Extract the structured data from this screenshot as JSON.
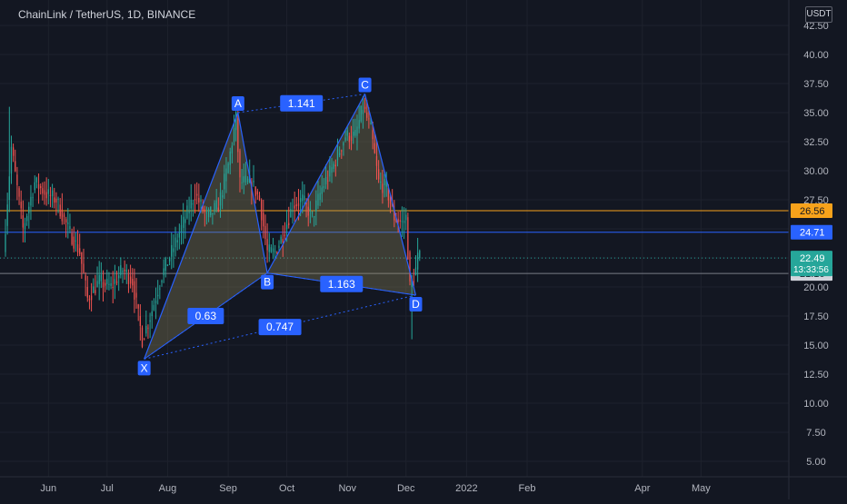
{
  "header": {
    "title": "ChainLink / TetherUS, 1D, BINANCE"
  },
  "currency": "USDT",
  "colors": {
    "background": "#131722",
    "grid": "#1e222d",
    "up": "#26a69a",
    "down": "#ef5350",
    "pattern_line": "#2962ff",
    "pattern_fill": "#8d8459",
    "badge": "#2962ff",
    "level_orange": "#f7a21b",
    "level_blue": "#2962ff",
    "axis_text": "#b2b5be"
  },
  "chart_data": {
    "type": "candlestick",
    "x_tick_labels": [
      {
        "label": "Jun",
        "date": "2021-06-01"
      },
      {
        "label": "Jul",
        "date": "2021-07-01"
      },
      {
        "label": "Aug",
        "date": "2021-08-01"
      },
      {
        "label": "Sep",
        "date": "2021-09-01"
      },
      {
        "label": "Oct",
        "date": "2021-10-01"
      },
      {
        "label": "Nov",
        "date": "2021-11-01"
      },
      {
        "label": "Dec",
        "date": "2021-12-01"
      },
      {
        "label": "2022",
        "date": "2022-01-01"
      },
      {
        "label": "Feb",
        "date": "2022-02-01"
      },
      {
        "label": "Apr",
        "date": "2022-04-01"
      },
      {
        "label": "May",
        "date": "2022-05-01"
      }
    ],
    "y_ticks": [
      "42.50",
      "40.00",
      "37.50",
      "35.00",
      "32.50",
      "30.00",
      "27.50",
      "25.00",
      "22.50",
      "20.00",
      "17.50",
      "15.00",
      "12.50",
      "10.00",
      "7.50",
      "5.00"
    ],
    "y_range": [
      3.9,
      43.5
    ],
    "x_range": [
      "2021-05-10",
      "2022-06-01"
    ],
    "price_path": [
      [
        "2021-05-10",
        23
      ],
      [
        "2021-05-14",
        32
      ],
      [
        "2021-05-20",
        25
      ],
      [
        "2021-05-26",
        29
      ],
      [
        "2021-06-01",
        28
      ],
      [
        "2021-06-06",
        27.5
      ],
      [
        "2021-06-12",
        25
      ],
      [
        "2021-06-18",
        23
      ],
      [
        "2021-06-22",
        19
      ],
      [
        "2021-06-28",
        20.5
      ],
      [
        "2021-07-04",
        20
      ],
      [
        "2021-07-10",
        21.5
      ],
      [
        "2021-07-15",
        20.5
      ],
      [
        "2021-07-20",
        15.5
      ],
      [
        "2021-07-25",
        18
      ],
      [
        "2021-07-30",
        21
      ],
      [
        "2021-08-04",
        23
      ],
      [
        "2021-08-10",
        25.5
      ],
      [
        "2021-08-16",
        28
      ],
      [
        "2021-08-22",
        26
      ],
      [
        "2021-08-28",
        27
      ],
      [
        "2021-09-02",
        30.5
      ],
      [
        "2021-09-06",
        34.5
      ],
      [
        "2021-09-08",
        29
      ],
      [
        "2021-09-14",
        29
      ],
      [
        "2021-09-18",
        27.5
      ],
      [
        "2021-09-22",
        23
      ],
      [
        "2021-09-26",
        23
      ],
      [
        "2021-09-30",
        24.5
      ],
      [
        "2021-10-05",
        27
      ],
      [
        "2021-10-10",
        27.5
      ],
      [
        "2021-10-15",
        26
      ],
      [
        "2021-10-20",
        28.5
      ],
      [
        "2021-10-26",
        30.5
      ],
      [
        "2021-11-01",
        33
      ],
      [
        "2021-11-06",
        33
      ],
      [
        "2021-11-10",
        35.5
      ],
      [
        "2021-11-14",
        33.5
      ],
      [
        "2021-11-18",
        29
      ],
      [
        "2021-11-22",
        28.5
      ],
      [
        "2021-11-26",
        26
      ],
      [
        "2021-11-30",
        25.5
      ],
      [
        "2021-12-02",
        26
      ],
      [
        "2021-12-04",
        20
      ],
      [
        "2021-12-07",
        21.5
      ],
      [
        "2021-12-08",
        22.49
      ]
    ],
    "extremes": [
      {
        "date": "2021-05-12",
        "value": 35.5
      },
      {
        "date": "2021-06-19",
        "value": 21.5
      },
      {
        "date": "2021-12-04",
        "value": 15.5
      }
    ],
    "harmonic_pattern": {
      "points": [
        {
          "label": "X",
          "date": "2021-07-20",
          "value": 13.8
        },
        {
          "label": "A",
          "date": "2021-09-06",
          "value": 35.0
        },
        {
          "label": "B",
          "date": "2021-09-21",
          "value": 21.2
        },
        {
          "label": "C",
          "date": "2021-11-10",
          "value": 36.6
        },
        {
          "label": "D",
          "date": "2021-12-06",
          "value": 19.3
        }
      ],
      "ratios": [
        {
          "value": "1.141",
          "from": "A",
          "to": "C"
        },
        {
          "value": "0.63",
          "from": "X",
          "to": "B"
        },
        {
          "value": "0.747",
          "from": "X",
          "to": "D"
        },
        {
          "value": "1.163",
          "from": "B",
          "to": "D"
        }
      ]
    },
    "levels": [
      {
        "value": 26.56,
        "label": "26.56",
        "color": "#f7a21b"
      },
      {
        "value": 24.71,
        "label": "24.71",
        "color": "#2962ff"
      },
      {
        "value": 21.16,
        "label": "21.16",
        "color": "#787b86"
      }
    ],
    "last_price": {
      "value": 22.49,
      "label": "22.49",
      "countdown": "13:33:56",
      "color": "#26a69a"
    }
  }
}
